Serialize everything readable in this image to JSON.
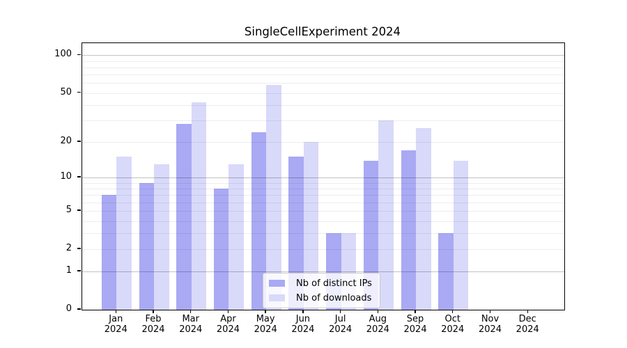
{
  "chart_data": {
    "type": "bar",
    "title": "SingleCellExperiment 2024",
    "categories": [
      "Jan",
      "Feb",
      "Mar",
      "Apr",
      "May",
      "Jun",
      "Jul",
      "Aug",
      "Sep",
      "Oct",
      "Nov",
      "Dec"
    ],
    "x_tick_second_line": "2024",
    "series": [
      {
        "name": "Nb of distinct IPs",
        "color": "#a9a9f4",
        "values": [
          7,
          9,
          28,
          8,
          24,
          15,
          3,
          14,
          17,
          3,
          0,
          0
        ]
      },
      {
        "name": "Nb of downloads",
        "color": "#d9d9fa",
        "values": [
          15,
          13,
          42,
          13,
          58,
          20,
          3,
          30,
          26,
          14,
          0,
          0
        ]
      }
    ],
    "ylabel": "",
    "xlabel": "",
    "y_ticks": [
      0,
      1,
      2,
      5,
      10,
      20,
      50,
      100
    ],
    "y_scale": "log1p",
    "ylim": [
      0,
      127
    ],
    "grid": {
      "minor_lines": [
        2,
        3,
        4,
        5,
        6,
        7,
        8,
        9,
        20,
        30,
        40,
        50,
        60,
        70,
        80,
        90
      ],
      "major_lines": [
        1,
        10,
        100
      ]
    },
    "legend_position": "inside lower-center"
  }
}
